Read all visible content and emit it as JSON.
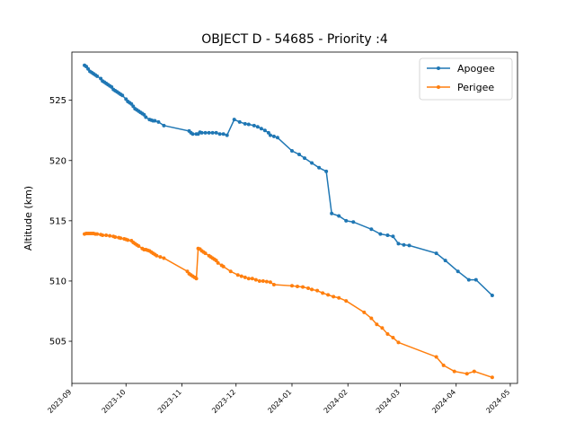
{
  "chart_data": {
    "type": "line",
    "title": "OBJECT D - 54685 - Priority :4",
    "xlabel": "",
    "ylabel": "Altitude (km)",
    "xlim": [
      "2023-09-01",
      "2024-05-05"
    ],
    "ylim": [
      501.5,
      529.0
    ],
    "xticks": [
      "2023-09",
      "2023-10",
      "2023-11",
      "2023-12",
      "2024-01",
      "2024-02",
      "2024-03",
      "2024-04",
      "2024-05"
    ],
    "yticks": [
      505,
      510,
      515,
      520,
      525
    ],
    "grid": false,
    "legend_position": "upper right",
    "series": [
      {
        "name": "Apogee",
        "color": "#1f77b4",
        "points": [
          [
            "2023-09-08",
            527.9
          ],
          [
            "2023-09-09",
            527.8
          ],
          [
            "2023-09-10",
            527.6
          ],
          [
            "2023-09-11",
            527.4
          ],
          [
            "2023-09-12",
            527.3
          ],
          [
            "2023-09-13",
            527.2
          ],
          [
            "2023-09-14",
            527.1
          ],
          [
            "2023-09-15",
            527.0
          ],
          [
            "2023-09-17",
            526.8
          ],
          [
            "2023-09-18",
            526.6
          ],
          [
            "2023-09-19",
            526.5
          ],
          [
            "2023-09-20",
            526.4
          ],
          [
            "2023-09-21",
            526.3
          ],
          [
            "2023-09-22",
            526.2
          ],
          [
            "2023-09-23",
            526.1
          ],
          [
            "2023-09-24",
            525.9
          ],
          [
            "2023-09-25",
            525.8
          ],
          [
            "2023-09-26",
            525.7
          ],
          [
            "2023-09-27",
            525.6
          ],
          [
            "2023-09-28",
            525.5
          ],
          [
            "2023-09-29",
            525.4
          ],
          [
            "2023-10-01",
            525.1
          ],
          [
            "2023-10-02",
            524.9
          ],
          [
            "2023-10-03",
            524.8
          ],
          [
            "2023-10-04",
            524.7
          ],
          [
            "2023-10-05",
            524.5
          ],
          [
            "2023-10-06",
            524.3
          ],
          [
            "2023-10-07",
            524.2
          ],
          [
            "2023-10-08",
            524.1
          ],
          [
            "2023-10-09",
            524.0
          ],
          [
            "2023-10-10",
            523.9
          ],
          [
            "2023-10-11",
            523.8
          ],
          [
            "2023-10-12",
            523.6
          ],
          [
            "2023-10-14",
            523.4
          ],
          [
            "2023-10-15",
            523.35
          ],
          [
            "2023-10-16",
            523.3
          ],
          [
            "2023-10-17",
            523.3
          ],
          [
            "2023-10-19",
            523.2
          ],
          [
            "2023-10-22",
            522.9
          ],
          [
            "2023-11-05",
            522.45
          ],
          [
            "2023-11-06",
            522.3
          ],
          [
            "2023-11-07",
            522.2
          ],
          [
            "2023-11-09",
            522.2
          ],
          [
            "2023-11-10",
            522.2
          ],
          [
            "2023-11-11",
            522.35
          ],
          [
            "2023-11-12",
            522.3
          ],
          [
            "2023-11-14",
            522.3
          ],
          [
            "2023-11-16",
            522.3
          ],
          [
            "2023-11-18",
            522.3
          ],
          [
            "2023-11-20",
            522.3
          ],
          [
            "2023-11-22",
            522.2
          ],
          [
            "2023-11-24",
            522.2
          ],
          [
            "2023-11-26",
            522.1
          ],
          [
            "2023-11-30",
            523.4
          ],
          [
            "2023-12-03",
            523.2
          ],
          [
            "2023-12-06",
            523.05
          ],
          [
            "2023-12-08",
            523.0
          ],
          [
            "2023-12-11",
            522.9
          ],
          [
            "2023-12-13",
            522.8
          ],
          [
            "2023-12-15",
            522.65
          ],
          [
            "2023-12-17",
            522.5
          ],
          [
            "2023-12-19",
            522.3
          ],
          [
            "2023-12-20",
            522.1
          ],
          [
            "2023-12-22",
            522.0
          ],
          [
            "2023-12-24",
            521.9
          ],
          [
            "2024-01-01",
            520.8
          ],
          [
            "2024-01-05",
            520.5
          ],
          [
            "2024-01-08",
            520.2
          ],
          [
            "2024-01-12",
            519.8
          ],
          [
            "2024-01-16",
            519.4
          ],
          [
            "2024-01-20",
            519.1
          ],
          [
            "2024-01-23",
            515.6
          ],
          [
            "2024-01-27",
            515.4
          ],
          [
            "2024-01-31",
            515.0
          ],
          [
            "2024-02-04",
            514.9
          ],
          [
            "2024-02-14",
            514.3
          ],
          [
            "2024-02-19",
            513.9
          ],
          [
            "2024-02-23",
            513.8
          ],
          [
            "2024-02-26",
            513.7
          ],
          [
            "2024-02-29",
            513.1
          ],
          [
            "2024-03-03",
            513.0
          ],
          [
            "2024-03-06",
            512.95
          ],
          [
            "2024-03-21",
            512.3
          ],
          [
            "2024-03-26",
            511.7
          ],
          [
            "2024-04-02",
            510.8
          ],
          [
            "2024-04-08",
            510.1
          ],
          [
            "2024-04-12",
            510.1
          ],
          [
            "2024-04-21",
            508.8
          ]
        ]
      },
      {
        "name": "Perigee",
        "color": "#ff7f0e",
        "points": [
          [
            "2023-09-08",
            513.9
          ],
          [
            "2023-09-09",
            513.95
          ],
          [
            "2023-09-10",
            513.95
          ],
          [
            "2023-09-11",
            513.95
          ],
          [
            "2023-09-12",
            513.95
          ],
          [
            "2023-09-13",
            513.95
          ],
          [
            "2023-09-14",
            513.9
          ],
          [
            "2023-09-15",
            513.9
          ],
          [
            "2023-09-17",
            513.85
          ],
          [
            "2023-09-18",
            513.8
          ],
          [
            "2023-09-20",
            513.8
          ],
          [
            "2023-09-22",
            513.75
          ],
          [
            "2023-09-24",
            513.7
          ],
          [
            "2023-09-25",
            513.65
          ],
          [
            "2023-09-27",
            513.6
          ],
          [
            "2023-09-28",
            513.55
          ],
          [
            "2023-09-30",
            513.5
          ],
          [
            "2023-10-01",
            513.45
          ],
          [
            "2023-10-02",
            513.4
          ],
          [
            "2023-10-04",
            513.35
          ],
          [
            "2023-10-05",
            513.2
          ],
          [
            "2023-10-06",
            513.1
          ],
          [
            "2023-10-07",
            513.0
          ],
          [
            "2023-10-08",
            512.9
          ],
          [
            "2023-10-10",
            512.7
          ],
          [
            "2023-10-11",
            512.6
          ],
          [
            "2023-10-12",
            512.6
          ],
          [
            "2023-10-13",
            512.55
          ],
          [
            "2023-10-14",
            512.5
          ],
          [
            "2023-10-15",
            512.4
          ],
          [
            "2023-10-16",
            512.3
          ],
          [
            "2023-10-17",
            512.2
          ],
          [
            "2023-10-18",
            512.1
          ],
          [
            "2023-10-20",
            512.0
          ],
          [
            "2023-10-22",
            511.9
          ],
          [
            "2023-11-04",
            510.8
          ],
          [
            "2023-11-05",
            510.6
          ],
          [
            "2023-11-06",
            510.5
          ],
          [
            "2023-11-07",
            510.4
          ],
          [
            "2023-11-08",
            510.3
          ],
          [
            "2023-11-09",
            510.2
          ],
          [
            "2023-11-10",
            512.7
          ],
          [
            "2023-11-11",
            512.65
          ],
          [
            "2023-11-12",
            512.5
          ],
          [
            "2023-11-13",
            512.4
          ],
          [
            "2023-11-14",
            512.3
          ],
          [
            "2023-11-16",
            512.1
          ],
          [
            "2023-11-17",
            512.0
          ],
          [
            "2023-11-18",
            511.9
          ],
          [
            "2023-11-19",
            511.8
          ],
          [
            "2023-11-20",
            511.7
          ],
          [
            "2023-11-21",
            511.5
          ],
          [
            "2023-11-23",
            511.3
          ],
          [
            "2023-11-24",
            511.2
          ],
          [
            "2023-11-28",
            510.8
          ],
          [
            "2023-12-02",
            510.5
          ],
          [
            "2023-12-04",
            510.4
          ],
          [
            "2023-12-06",
            510.3
          ],
          [
            "2023-12-08",
            510.2
          ],
          [
            "2023-12-10",
            510.2
          ],
          [
            "2023-12-12",
            510.1
          ],
          [
            "2023-12-14",
            510.0
          ],
          [
            "2023-12-16",
            510.0
          ],
          [
            "2023-12-18",
            509.95
          ],
          [
            "2023-12-20",
            509.9
          ],
          [
            "2023-12-22",
            509.7
          ],
          [
            "2024-01-01",
            509.6
          ],
          [
            "2024-01-04",
            509.55
          ],
          [
            "2024-01-07",
            509.5
          ],
          [
            "2024-01-10",
            509.4
          ],
          [
            "2024-01-12",
            509.3
          ],
          [
            "2024-01-15",
            509.2
          ],
          [
            "2024-01-18",
            509.0
          ],
          [
            "2024-01-21",
            508.85
          ],
          [
            "2024-01-24",
            508.7
          ],
          [
            "2024-01-27",
            508.6
          ],
          [
            "2024-01-31",
            508.35
          ],
          [
            "2024-02-10",
            507.4
          ],
          [
            "2024-02-14",
            506.9
          ],
          [
            "2024-02-17",
            506.4
          ],
          [
            "2024-02-20",
            506.1
          ],
          [
            "2024-02-23",
            505.6
          ],
          [
            "2024-02-26",
            505.3
          ],
          [
            "2024-02-29",
            504.9
          ],
          [
            "2024-03-21",
            503.7
          ],
          [
            "2024-03-25",
            503.0
          ],
          [
            "2024-03-31",
            502.5
          ],
          [
            "2024-04-07",
            502.3
          ],
          [
            "2024-04-11",
            502.5
          ],
          [
            "2024-04-21",
            502.0
          ]
        ]
      }
    ]
  }
}
